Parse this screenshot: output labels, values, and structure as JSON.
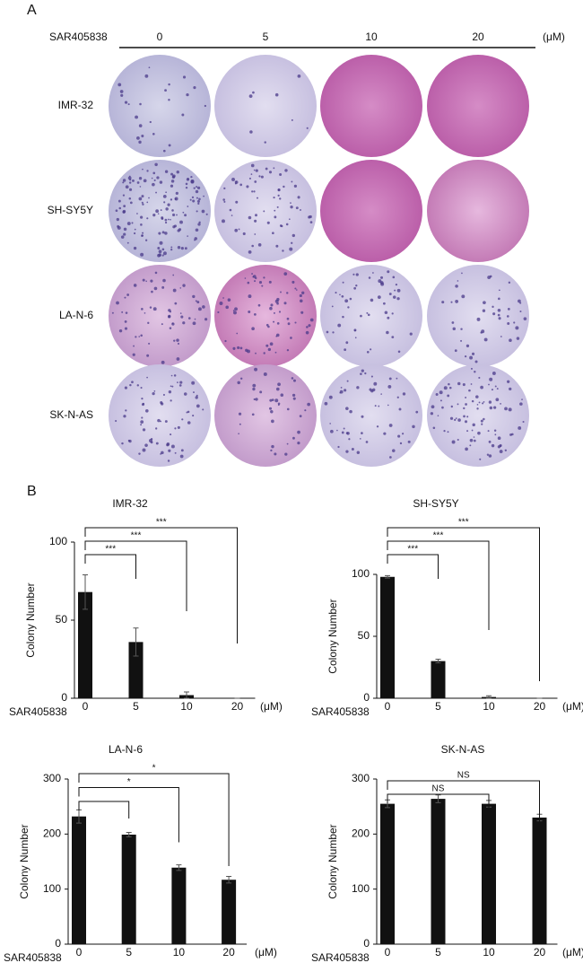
{
  "panel_a": {
    "label": "A",
    "drug": "SAR405838",
    "concentrations": [
      "0",
      "5",
      "10",
      "20"
    ],
    "unit": "(μM)",
    "cell_lines": [
      "IMR-32",
      "SH-SY5Y",
      "LA-N-6",
      "SK-N-AS"
    ]
  },
  "panel_b": {
    "label": "B"
  },
  "chart_data": [
    {
      "type": "bar",
      "title": "IMR-32",
      "categories": [
        "0",
        "5",
        "10",
        "20"
      ],
      "values": [
        68,
        36,
        2,
        0
      ],
      "errors": [
        11,
        9,
        2,
        0
      ],
      "color": "#111111",
      "ylim": [
        0,
        100
      ],
      "yticks": [
        0,
        50,
        100
      ],
      "ylabel": "Colony  Number",
      "xlabel": "SAR405838",
      "unit": "(μM)",
      "significance": [
        {
          "to": "5",
          "label": "***"
        },
        {
          "to": "10",
          "label": "***"
        },
        {
          "to": "20",
          "label": "***"
        }
      ]
    },
    {
      "type": "bar",
      "title": "SH-SY5Y",
      "categories": [
        "0",
        "5",
        "10",
        "20"
      ],
      "values": [
        98,
        30,
        1,
        0
      ],
      "errors": [
        1,
        1.5,
        1,
        0
      ],
      "color": "#111111",
      "ylim": [
        0,
        100
      ],
      "yticks": [
        0,
        50,
        100
      ],
      "ylabel": "Colony  Number",
      "xlabel": "SAR405838",
      "unit": "(μM)",
      "significance": [
        {
          "to": "5",
          "label": "***"
        },
        {
          "to": "10",
          "label": "***"
        },
        {
          "to": "20",
          "label": "***"
        }
      ]
    },
    {
      "type": "bar",
      "title": "LA-N-6",
      "categories": [
        "0",
        "5",
        "10",
        "20"
      ],
      "values": [
        232,
        199,
        139,
        117
      ],
      "errors": [
        12,
        4,
        5,
        6
      ],
      "color": "#111111",
      "ylim": [
        0,
        300
      ],
      "yticks": [
        0,
        100,
        200,
        300
      ],
      "ylabel": "Colony  Number",
      "xlabel": "SAR405838",
      "unit": "(μM)",
      "significance": [
        {
          "to": "5"
        },
        {
          "to": "10",
          "label": "*"
        },
        {
          "to": "20",
          "label": "*"
        }
      ]
    },
    {
      "type": "bar",
      "title": "SK-N-AS",
      "categories": [
        "0",
        "5",
        "10",
        "20"
      ],
      "values": [
        255,
        264,
        255,
        230
      ],
      "errors": [
        7,
        7,
        6,
        6
      ],
      "color": "#111111",
      "ylim": [
        0,
        300
      ],
      "yticks": [
        0,
        100,
        200,
        300
      ],
      "ylabel": "Colony  Number",
      "xlabel": "SAR405838",
      "unit": "(μM)",
      "significance": [
        {
          "to": "10",
          "label": "NS"
        },
        {
          "to": "20",
          "label": "NS"
        }
      ]
    }
  ]
}
